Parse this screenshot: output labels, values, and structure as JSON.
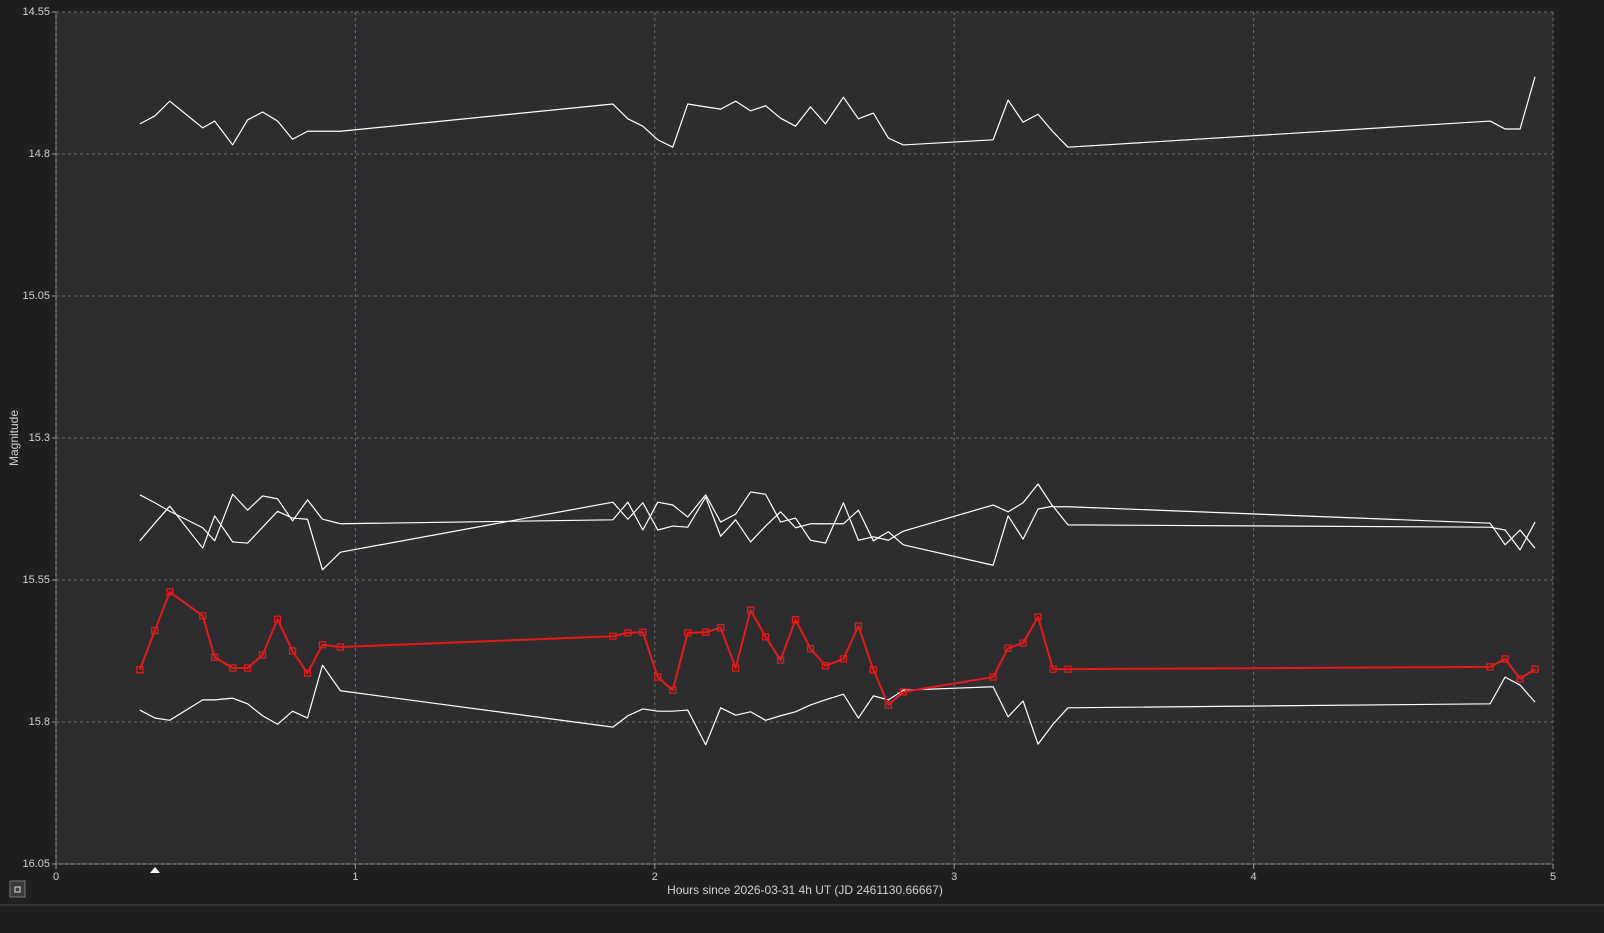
{
  "chart_data": {
    "type": "line",
    "ylabel": "Magnitude",
    "xlabel": "Hours since 2026-03-31 4h UT (JD 2461130.66667)",
    "xlim": [
      0,
      5
    ],
    "xticks": [
      0,
      1,
      2,
      3,
      4,
      5
    ],
    "ylim": [
      16.05,
      14.55
    ],
    "yticks": [
      14.55,
      14.8,
      15.05,
      15.3,
      15.55,
      15.8,
      16.05
    ],
    "grid": true,
    "x": [
      0.28,
      0.33,
      0.38,
      0.49,
      0.53,
      0.59,
      0.64,
      0.69,
      0.74,
      0.79,
      0.84,
      0.89,
      0.95,
      1.86,
      1.91,
      1.96,
      2.01,
      2.06,
      2.11,
      2.17,
      2.22,
      2.27,
      2.32,
      2.37,
      2.42,
      2.47,
      2.52,
      2.57,
      2.63,
      2.68,
      2.73,
      2.78,
      2.83,
      3.13,
      3.18,
      3.23,
      3.28,
      3.33,
      3.38,
      4.79,
      4.84,
      4.89,
      4.94
    ],
    "series": [
      {
        "color": "#ffffff",
        "values": [
          14.747,
          14.733,
          14.707,
          14.754,
          14.742,
          14.784,
          14.74,
          14.726,
          14.742,
          14.774,
          14.76,
          14.76,
          14.76,
          14.712,
          14.738,
          14.751,
          14.775,
          14.788,
          14.712,
          14.717,
          14.721,
          14.707,
          14.724,
          14.715,
          14.737,
          14.751,
          14.717,
          14.747,
          14.7,
          14.738,
          14.728,
          14.772,
          14.784,
          14.775,
          14.705,
          14.744,
          14.73,
          14.761,
          14.788,
          14.742,
          14.756,
          14.756,
          14.664
        ]
      },
      {
        "color": "#ffffff",
        "values": [
          15.4,
          15.414,
          15.429,
          15.458,
          15.481,
          15.399,
          15.427,
          15.402,
          15.407,
          15.446,
          15.409,
          15.443,
          15.451,
          15.444,
          15.413,
          15.462,
          15.413,
          15.418,
          15.439,
          15.4,
          15.448,
          15.434,
          15.395,
          15.399,
          15.448,
          15.441,
          15.48,
          15.485,
          15.414,
          15.48,
          15.474,
          15.48,
          15.464,
          15.418,
          15.43,
          15.414,
          15.381,
          15.421,
          15.421,
          15.45,
          15.488,
          15.462,
          15.494
        ]
      },
      {
        "color": "#ffffff",
        "values": [
          15.481,
          15.45,
          15.42,
          15.494,
          15.437,
          15.483,
          15.485,
          15.457,
          15.429,
          15.441,
          15.443,
          15.532,
          15.501,
          15.413,
          15.443,
          15.414,
          15.462,
          15.455,
          15.457,
          15.404,
          15.473,
          15.444,
          15.483,
          15.455,
          15.43,
          15.458,
          15.451,
          15.451,
          15.451,
          15.427,
          15.481,
          15.465,
          15.488,
          15.524,
          15.437,
          15.478,
          15.425,
          15.42,
          15.453,
          15.457,
          15.462,
          15.497,
          15.448
        ]
      },
      {
        "color": "#ffffff",
        "values": [
          15.779,
          15.793,
          15.797,
          15.761,
          15.761,
          15.758,
          15.768,
          15.789,
          15.804,
          15.781,
          15.793,
          15.7,
          15.745,
          15.809,
          15.789,
          15.777,
          15.781,
          15.781,
          15.779,
          15.84,
          15.775,
          15.788,
          15.782,
          15.797,
          15.789,
          15.782,
          15.77,
          15.761,
          15.751,
          15.793,
          15.754,
          15.761,
          15.744,
          15.738,
          15.791,
          15.763,
          15.839,
          15.804,
          15.775,
          15.768,
          15.721,
          15.735,
          15.765
        ]
      },
      {
        "color": "#e31b1b",
        "marker": "square",
        "values": [
          15.708,
          15.639,
          15.571,
          15.613,
          15.686,
          15.705,
          15.705,
          15.682,
          15.619,
          15.675,
          15.714,
          15.664,
          15.668,
          15.649,
          15.643,
          15.642,
          15.721,
          15.744,
          15.643,
          15.642,
          15.634,
          15.705,
          15.603,
          15.65,
          15.691,
          15.62,
          15.671,
          15.701,
          15.689,
          15.631,
          15.708,
          15.77,
          15.747,
          15.721,
          15.67,
          15.661,
          15.615,
          15.707,
          15.707,
          15.703,
          15.689,
          15.724,
          15.707
        ]
      }
    ]
  }
}
